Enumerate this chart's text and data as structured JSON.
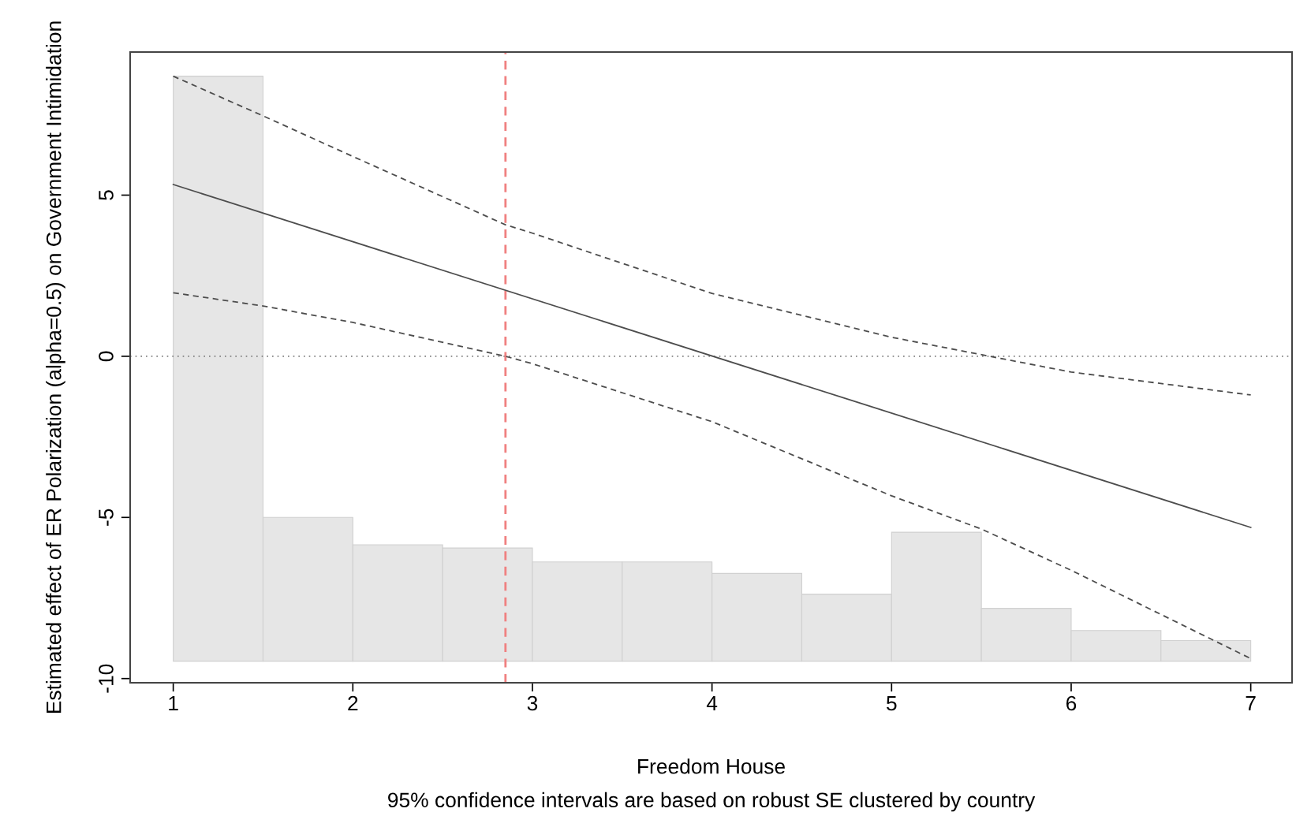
{
  "chart_data": {
    "type": "line",
    "xlabel": "Freedom House",
    "ylabel": "Estimated effect of ER Polarization (alpha=0.5) on Government Intimidation",
    "annotations": [
      "95% confidence intervals are based on robust SE clustered by country"
    ],
    "xlim": [
      0.76,
      7.23
    ],
    "ylim": [
      -10.13,
      9.44
    ],
    "xticks": [
      1,
      2,
      3,
      4,
      5,
      6,
      7
    ],
    "yticks": [
      -10,
      -5,
      0,
      5
    ],
    "grid": false,
    "legend": false,
    "series": [
      {
        "type": "histogram",
        "color": "#e6e6e6",
        "bins": [
          1,
          1.5,
          2,
          2.5,
          3,
          3.5,
          4,
          4.5,
          5,
          5.5,
          6,
          6.5,
          7
        ],
        "base": [
          -9.46,
          -9.46,
          -9.46,
          -9.46,
          -9.46,
          -9.46,
          -9.46,
          -9.46,
          -9.46,
          -9.46,
          -9.46,
          -9.46
        ],
        "values": [
          18.15,
          4.46,
          3.61,
          3.51,
          3.08,
          3.08,
          2.72,
          2.08,
          4.0,
          1.64,
          0.95,
          0.64
        ]
      },
      {
        "color": "#4d4d4d",
        "line_style": "solid",
        "x": [
          1,
          7
        ],
        "values": [
          5.33,
          -5.31
        ]
      },
      {
        "type": "line",
        "color": "#4d4d4d",
        "line_style": "dashed",
        "x": [
          1,
          1.5,
          2,
          2.85,
          3,
          4,
          5,
          6,
          7
        ],
        "values": [
          8.69,
          7.46,
          6.2,
          4.08,
          3.82,
          1.95,
          0.59,
          -0.49,
          -1.2
        ]
      },
      {
        "type": "line",
        "color": "#4d4d4d",
        "line_style": "dashed",
        "x": [
          1,
          1.5,
          2,
          2.85,
          3,
          4,
          5,
          5.5,
          6,
          7
        ],
        "values": [
          1.97,
          1.56,
          1.05,
          0.0,
          -0.23,
          -2.03,
          -4.33,
          -5.36,
          -6.64,
          -9.38
        ]
      }
    ],
    "ref_lines": [
      {
        "axis": "y",
        "value": 0,
        "color": "#808080",
        "line_style": "dotted"
      },
      {
        "axis": "x",
        "value": 2.85,
        "color": "#f08080",
        "line_style": "dashed"
      }
    ]
  }
}
